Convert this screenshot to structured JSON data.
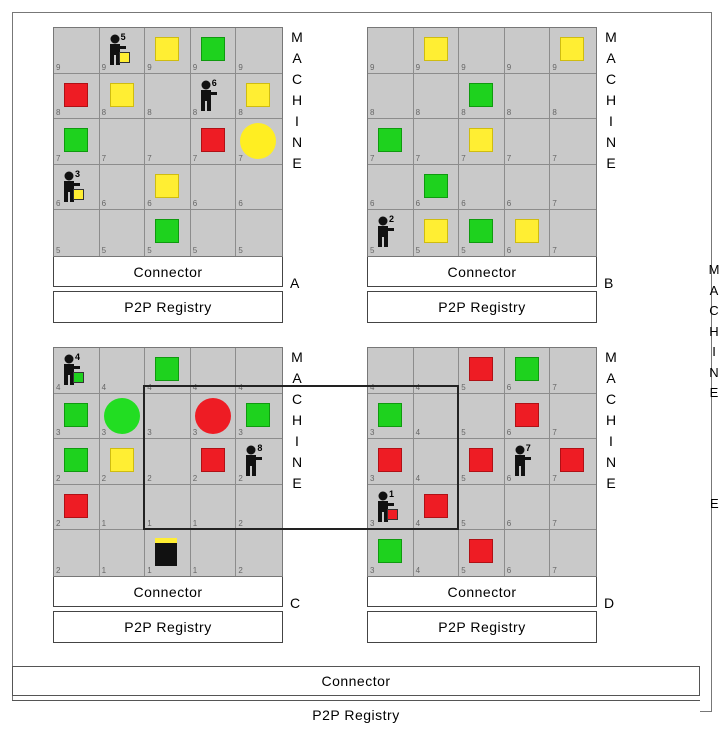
{
  "machines": [
    {
      "id": "A",
      "label_letters": [
        "M",
        "A",
        "C",
        "H",
        "I",
        "N",
        "E"
      ],
      "letter": "A",
      "connector": "Connector",
      "registry": "P2P Registry",
      "cells": [
        [
          {
            "n": "9"
          },
          {
            "n": "9",
            "agent": "5",
            "box": "yellow"
          },
          {
            "n": "9",
            "sq": "yellow"
          },
          {
            "n": "9",
            "sq": "green"
          },
          {
            "n": "9"
          }
        ],
        [
          {
            "n": "8",
            "sq": "red"
          },
          {
            "n": "8",
            "sq": "yellow"
          },
          {
            "n": "8"
          },
          {
            "n": "8",
            "agent": "6"
          },
          {
            "n": "8",
            "sq": "yellow"
          }
        ],
        [
          {
            "n": "7",
            "sq": "green"
          },
          {
            "n": "7"
          },
          {
            "n": "7"
          },
          {
            "n": "7",
            "sq": "red"
          },
          {
            "n": "7",
            "circ": "yellow"
          }
        ],
        [
          {
            "n": "6",
            "agent": "3",
            "box": "yellow"
          },
          {
            "n": "6"
          },
          {
            "n": "6",
            "sq": "yellow"
          },
          {
            "n": "6"
          },
          {
            "n": "6"
          }
        ],
        [
          {
            "n": "5"
          },
          {
            "n": "5"
          },
          {
            "n": "5",
            "sq": "green"
          },
          {
            "n": "5"
          },
          {
            "n": "5"
          }
        ]
      ]
    },
    {
      "id": "B",
      "label_letters": [
        "M",
        "A",
        "C",
        "H",
        "I",
        "N",
        "E"
      ],
      "letter": "B",
      "connector": "Connector",
      "registry": "P2P Registry",
      "cells": [
        [
          {
            "n": "9"
          },
          {
            "n": "9",
            "sq": "yellow"
          },
          {
            "n": "9"
          },
          {
            "n": "9"
          },
          {
            "n": "9",
            "sq": "yellow"
          }
        ],
        [
          {
            "n": "8"
          },
          {
            "n": "8"
          },
          {
            "n": "8",
            "sq": "green"
          },
          {
            "n": "8"
          },
          {
            "n": "8"
          }
        ],
        [
          {
            "n": "7",
            "sq": "green"
          },
          {
            "n": "7"
          },
          {
            "n": "7",
            "sq": "yellow"
          },
          {
            "n": "7"
          },
          {
            "n": "7"
          }
        ],
        [
          {
            "n": "6"
          },
          {
            "n": "6",
            "sq": "green"
          },
          {
            "n": "6"
          },
          {
            "n": "6"
          },
          {
            "n": "7"
          }
        ],
        [
          {
            "n": "5",
            "agent": "2"
          },
          {
            "n": "5",
            "sq": "yellow"
          },
          {
            "n": "5",
            "sq": "green"
          },
          {
            "n": "6",
            "sq": "yellow"
          },
          {
            "n": "7"
          }
        ]
      ]
    },
    {
      "id": "C",
      "label_letters": [
        "M",
        "A",
        "C",
        "H",
        "I",
        "N",
        "E"
      ],
      "letter": "C",
      "connector": "Connector",
      "registry": "P2P Registry",
      "cells": [
        [
          {
            "n": "4",
            "agent": "4",
            "box": "green"
          },
          {
            "n": "4"
          },
          {
            "n": "4",
            "sq": "green"
          },
          {
            "n": "4"
          },
          {
            "n": "4"
          }
        ],
        [
          {
            "n": "3",
            "sq": "green"
          },
          {
            "n": "3",
            "circ": "green"
          },
          {
            "n": "3"
          },
          {
            "n": "3",
            "circ": "red"
          },
          {
            "n": "3",
            "sq": "green"
          }
        ],
        [
          {
            "n": "2",
            "sq": "green"
          },
          {
            "n": "2",
            "sq": "yellow"
          },
          {
            "n": "2"
          },
          {
            "n": "2",
            "sq": "red"
          },
          {
            "n": "2",
            "agent": "8"
          }
        ],
        [
          {
            "n": "2",
            "sq": "red"
          },
          {
            "n": "1"
          },
          {
            "n": "1"
          },
          {
            "n": "1"
          },
          {
            "n": "2"
          }
        ],
        [
          {
            "n": "2"
          },
          {
            "n": "1"
          },
          {
            "n": "1",
            "bin": true
          },
          {
            "n": "1"
          },
          {
            "n": "2"
          }
        ]
      ]
    },
    {
      "id": "D",
      "label_letters": [
        "M",
        "A",
        "C",
        "H",
        "I",
        "N",
        "E"
      ],
      "letter": "D",
      "connector": "Connector",
      "registry": "P2P Registry",
      "cells": [
        [
          {
            "n": "4"
          },
          {
            "n": "4"
          },
          {
            "n": "5",
            "sq": "red"
          },
          {
            "n": "6",
            "sq": "green"
          },
          {
            "n": "7"
          }
        ],
        [
          {
            "n": "3",
            "sq": "green"
          },
          {
            "n": "4"
          },
          {
            "n": "5"
          },
          {
            "n": "6",
            "sq": "red"
          },
          {
            "n": "7"
          }
        ],
        [
          {
            "n": "3",
            "sq": "red"
          },
          {
            "n": "4"
          },
          {
            "n": "5",
            "sq": "red"
          },
          {
            "n": "6",
            "agent": "7"
          },
          {
            "n": "7",
            "sq": "red"
          }
        ],
        [
          {
            "n": "3",
            "agent": "1",
            "box": "red"
          },
          {
            "n": "4",
            "sq": "red"
          },
          {
            "n": "5"
          },
          {
            "n": "6"
          },
          {
            "n": "7"
          }
        ],
        [
          {
            "n": "3",
            "sq": "green"
          },
          {
            "n": "4"
          },
          {
            "n": "5",
            "sq": "red"
          },
          {
            "n": "6"
          },
          {
            "n": "7"
          }
        ]
      ]
    }
  ],
  "outer": {
    "label_letters": [
      "M",
      "A",
      "C",
      "H",
      "I",
      "N",
      "E"
    ],
    "letter": "E",
    "connector": "Connector",
    "registry": "P2P Registry"
  },
  "colors": {
    "red": "#ee1c24",
    "green": "#1ed21e",
    "yellow": "#ffee33",
    "grid": "#c9c9c9"
  }
}
